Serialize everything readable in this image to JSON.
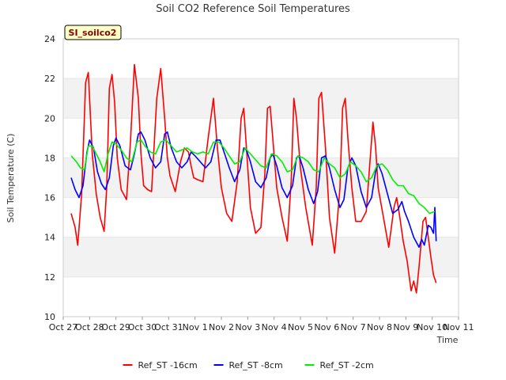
{
  "chart_data": {
    "type": "line",
    "title": "Soil CO2 Reference Soil Temperatures",
    "badge": "SI_soilco2",
    "xlabel": "Time",
    "ylabel": "Soil Temperature (C)",
    "xlim": [
      0,
      15
    ],
    "ylim": [
      10,
      24
    ],
    "x_ticks": [
      {
        "value": 0,
        "label": "Oct 27"
      },
      {
        "value": 1,
        "label": "Oct 28"
      },
      {
        "value": 2,
        "label": "Oct 29"
      },
      {
        "value": 3,
        "label": "Oct 30"
      },
      {
        "value": 4,
        "label": "Oct 31"
      },
      {
        "value": 5,
        "label": "Nov 1"
      },
      {
        "value": 6,
        "label": "Nov 2"
      },
      {
        "value": 7,
        "label": "Nov 3"
      },
      {
        "value": 8,
        "label": "Nov 4"
      },
      {
        "value": 9,
        "label": "Nov 5"
      },
      {
        "value": 10,
        "label": "Nov 6"
      },
      {
        "value": 11,
        "label": "Nov 7"
      },
      {
        "value": 12,
        "label": "Nov 8"
      },
      {
        "value": 13,
        "label": "Nov 9"
      },
      {
        "value": 14,
        "label": "Nov 10"
      },
      {
        "value": 15,
        "label": "Nov 11"
      }
    ],
    "y_ticks": [
      10,
      12,
      14,
      16,
      18,
      20,
      22,
      24
    ],
    "bands": [
      [
        12,
        14
      ],
      [
        16,
        18
      ],
      [
        20,
        22
      ]
    ],
    "band_color": "#f2f2f2",
    "legend_position": "bottom-center",
    "series": [
      {
        "name": "Ref_ST -16cm",
        "color": "#ff0000",
        "x": [
          0.3,
          0.45,
          0.55,
          0.7,
          0.85,
          0.95,
          1.0,
          1.1,
          1.25,
          1.4,
          1.55,
          1.65,
          1.75,
          1.85,
          1.95,
          2.05,
          2.2,
          2.4,
          2.55,
          2.7,
          2.85,
          2.95,
          3.05,
          3.2,
          3.35,
          3.55,
          3.7,
          3.85,
          3.95,
          4.05,
          4.25,
          4.45,
          4.6,
          4.75,
          4.85,
          4.95,
          5.1,
          5.3,
          5.5,
          5.7,
          5.85,
          6.0,
          6.2,
          6.4,
          6.6,
          6.75,
          6.85,
          6.95,
          7.1,
          7.3,
          7.5,
          7.65,
          7.75,
          7.85,
          7.95,
          8.1,
          8.3,
          8.5,
          8.65,
          8.75,
          8.85,
          9.0,
          9.2,
          9.45,
          9.6,
          9.7,
          9.8,
          9.95,
          10.1,
          10.3,
          10.5,
          10.6,
          10.7,
          10.8,
          10.95,
          11.1,
          11.3,
          11.5,
          11.65,
          11.75,
          11.85,
          11.95,
          12.15,
          12.35,
          12.55,
          12.65,
          12.75,
          12.9,
          13.05,
          13.2,
          13.3,
          13.4,
          13.5,
          13.65,
          13.75,
          13.85,
          13.95,
          14.05,
          14.15
        ],
        "y": [
          15.2,
          14.5,
          13.6,
          16.2,
          21.8,
          22.3,
          21.0,
          18.2,
          16.2,
          15.0,
          14.3,
          16.5,
          21.5,
          22.2,
          20.8,
          18.0,
          16.4,
          15.9,
          18.8,
          22.7,
          21.0,
          18.2,
          16.6,
          16.4,
          16.3,
          21.0,
          22.5,
          20.0,
          18.0,
          17.1,
          16.3,
          17.8,
          18.5,
          18.3,
          17.6,
          17.0,
          16.9,
          16.8,
          19.0,
          21.0,
          18.5,
          16.5,
          15.2,
          14.8,
          16.8,
          20.0,
          20.5,
          18.5,
          15.5,
          14.2,
          14.5,
          17.2,
          20.5,
          20.6,
          19.0,
          16.5,
          15.0,
          13.8,
          16.8,
          21.0,
          20.0,
          17.5,
          15.5,
          13.6,
          16.5,
          21.0,
          21.3,
          18.5,
          15.0,
          13.2,
          16.5,
          20.5,
          21.0,
          19.0,
          16.5,
          14.8,
          14.8,
          15.3,
          18.0,
          19.8,
          18.6,
          16.5,
          15.0,
          13.5,
          15.5,
          16.0,
          15.2,
          13.8,
          12.8,
          11.3,
          11.8,
          11.2,
          12.5,
          14.8,
          15.0,
          14.0,
          13.0,
          12.1,
          11.7
        ]
      },
      {
        "name": "Ref_ST -8cm",
        "color": "#0000ff",
        "x": [
          0.3,
          0.45,
          0.6,
          0.75,
          0.9,
          1.0,
          1.15,
          1.3,
          1.45,
          1.6,
          1.75,
          1.9,
          2.0,
          2.15,
          2.35,
          2.55,
          2.7,
          2.85,
          2.95,
          3.1,
          3.3,
          3.5,
          3.7,
          3.85,
          3.95,
          4.1,
          4.3,
          4.5,
          4.7,
          4.85,
          5.0,
          5.2,
          5.4,
          5.6,
          5.8,
          5.95,
          6.1,
          6.3,
          6.5,
          6.7,
          6.85,
          6.95,
          7.1,
          7.3,
          7.5,
          7.7,
          7.85,
          7.95,
          8.1,
          8.3,
          8.5,
          8.7,
          8.85,
          8.95,
          9.1,
          9.3,
          9.5,
          9.65,
          9.8,
          9.95,
          10.1,
          10.3,
          10.5,
          10.65,
          10.8,
          10.95,
          11.1,
          11.3,
          11.5,
          11.7,
          11.85,
          11.95,
          12.1,
          12.3,
          12.5,
          12.7,
          12.85,
          12.95,
          13.1,
          13.3,
          13.5,
          13.6,
          13.7,
          13.85,
          13.95,
          14.05,
          14.1,
          14.15
        ],
        "y": [
          17.0,
          16.4,
          16.0,
          16.6,
          18.3,
          18.9,
          18.5,
          17.3,
          16.7,
          16.4,
          17.0,
          18.6,
          19.0,
          18.6,
          17.6,
          17.4,
          18.2,
          19.2,
          19.3,
          18.9,
          18.0,
          17.5,
          17.8,
          19.2,
          19.3,
          18.5,
          17.8,
          17.5,
          17.8,
          18.3,
          18.1,
          17.8,
          17.5,
          17.8,
          18.9,
          18.9,
          18.3,
          17.5,
          16.8,
          17.4,
          18.5,
          18.4,
          17.8,
          16.8,
          16.5,
          17.0,
          18.0,
          18.2,
          17.6,
          16.5,
          16.0,
          16.6,
          18.0,
          18.1,
          17.5,
          16.4,
          15.7,
          16.3,
          18.0,
          18.1,
          17.5,
          16.4,
          15.5,
          15.9,
          17.5,
          18.0,
          17.6,
          16.3,
          15.5,
          16.0,
          17.3,
          17.7,
          17.2,
          16.2,
          15.2,
          15.4,
          15.8,
          15.3,
          14.8,
          14.0,
          13.5,
          13.9,
          13.6,
          14.6,
          14.5,
          14.2,
          15.5,
          13.8
        ]
      },
      {
        "name": "Ref_ST -2cm",
        "color": "#00ee00",
        "x": [
          0.3,
          0.5,
          0.65,
          0.8,
          0.95,
          1.1,
          1.25,
          1.4,
          1.55,
          1.7,
          1.85,
          2.0,
          2.2,
          2.4,
          2.6,
          2.8,
          2.95,
          3.1,
          3.3,
          3.5,
          3.7,
          3.9,
          4.1,
          4.3,
          4.5,
          4.7,
          4.9,
          5.1,
          5.3,
          5.5,
          5.7,
          5.9,
          6.1,
          6.3,
          6.5,
          6.7,
          6.9,
          7.1,
          7.3,
          7.5,
          7.7,
          7.9,
          8.1,
          8.3,
          8.5,
          8.7,
          8.9,
          9.1,
          9.3,
          9.5,
          9.7,
          9.9,
          10.1,
          10.3,
          10.5,
          10.7,
          10.9,
          11.1,
          11.3,
          11.5,
          11.7,
          11.9,
          12.1,
          12.3,
          12.5,
          12.7,
          12.9,
          13.1,
          13.3,
          13.5,
          13.7,
          13.9,
          14.1
        ],
        "y": [
          18.1,
          17.8,
          17.5,
          17.4,
          18.6,
          18.6,
          18.2,
          17.8,
          17.3,
          18.2,
          18.8,
          18.7,
          18.4,
          18.0,
          17.8,
          18.8,
          18.9,
          18.6,
          18.3,
          18.2,
          18.8,
          18.9,
          18.6,
          18.3,
          18.4,
          18.5,
          18.3,
          18.2,
          18.3,
          18.2,
          18.8,
          18.8,
          18.5,
          18.1,
          17.7,
          17.8,
          18.5,
          18.2,
          17.9,
          17.6,
          17.5,
          18.2,
          18.1,
          17.8,
          17.3,
          17.4,
          18.1,
          18.0,
          17.8,
          17.4,
          17.3,
          18.0,
          17.7,
          17.5,
          17.0,
          17.2,
          17.8,
          17.6,
          17.3,
          16.8,
          17.0,
          17.6,
          17.7,
          17.4,
          16.9,
          16.6,
          16.6,
          16.2,
          16.1,
          15.7,
          15.5,
          15.2,
          15.3
        ]
      }
    ]
  }
}
